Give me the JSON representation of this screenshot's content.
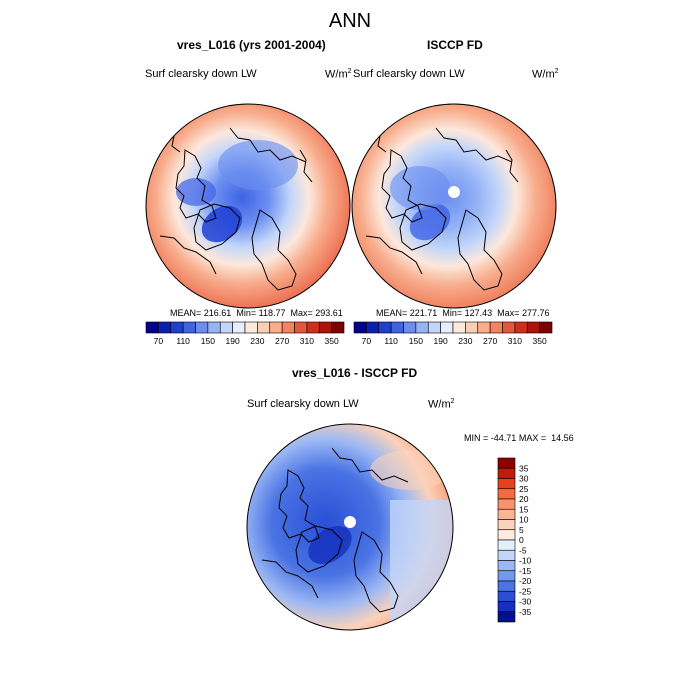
{
  "page_title": "ANN",
  "panels": [
    {
      "title": "vres_L016 (yrs 2001-2004)",
      "variable": "Surf clearsky down LW",
      "units_base": "W/m",
      "units_exp": "2",
      "mean_label": "MEAN=",
      "mean": "216.61",
      "min_label": "Min=",
      "min": "118.77",
      "max_label": "Max=",
      "max": "293.61"
    },
    {
      "title": "ISCCP FD",
      "variable": "Surf clearsky down LW",
      "units_base": "W/m",
      "units_exp": "2",
      "mean_label": "MEAN=",
      "mean": "221.71",
      "min_label": "Min=",
      "min": "127.43",
      "max_label": "Max=",
      "max": "277.76"
    }
  ],
  "horizontal_colorbar": {
    "labels": [
      "70",
      "110",
      "150",
      "190",
      "230",
      "270",
      "310",
      "350"
    ],
    "colors": [
      "#00008c",
      "#0a1fb4",
      "#1f3fd4",
      "#3e63e6",
      "#6b8ef0",
      "#96b3f6",
      "#c2d6fa",
      "#e6eefc",
      "#fde8dc",
      "#fbcdb4",
      "#f8ad8c",
      "#f3845f",
      "#e8563a",
      "#d32c1c",
      "#b0120c",
      "#7f0000"
    ]
  },
  "diff_panel": {
    "title": "vres_L016 - ISCCP FD",
    "variable": "Surf clearsky down LW",
    "units_base": "W/m",
    "units_exp": "2",
    "min_label": "MIN =",
    "min": "-44.71",
    "max_label": "MAX =",
    "max": "14.56"
  },
  "vertical_colorbar": {
    "labels": [
      "35",
      "30",
      "25",
      "20",
      "15",
      "10",
      "5",
      "0",
      "-5",
      "-10",
      "-15",
      "-20",
      "-25",
      "-30",
      "-35"
    ],
    "colors": [
      "#8c0000",
      "#c41a0c",
      "#e8401f",
      "#f36a43",
      "#f7946d",
      "#f9b595",
      "#fbd2bb",
      "#fdeae0",
      "#e6eefc",
      "#c3d6f9",
      "#9cb8f4",
      "#7399ee",
      "#4a73e4",
      "#2a4fd6",
      "#1430bd",
      "#00108f"
    ]
  }
}
